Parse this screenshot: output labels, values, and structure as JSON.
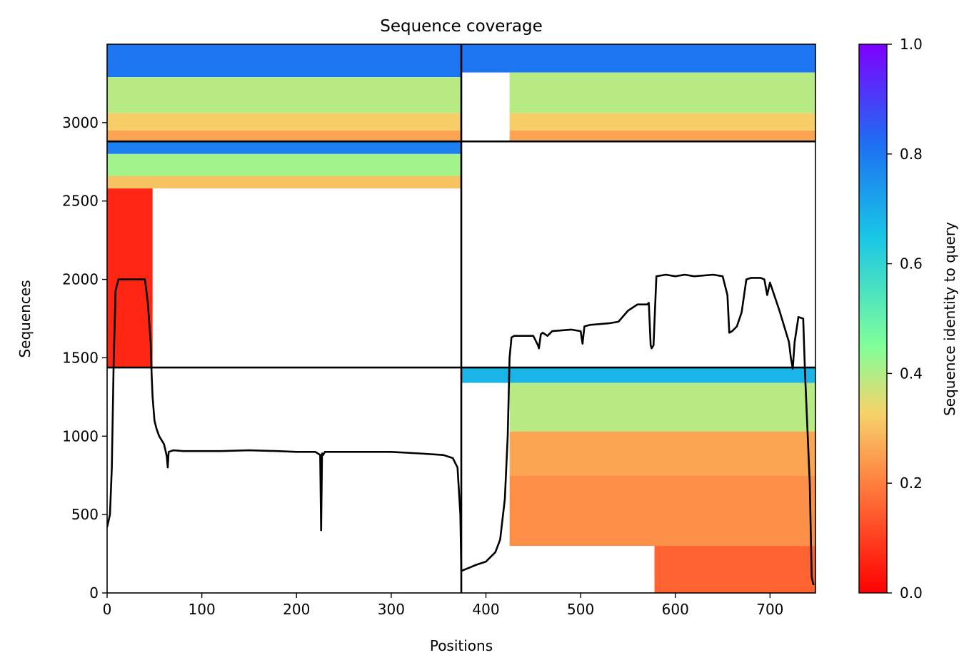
{
  "chart_data": {
    "type": "heatmap",
    "title": "Sequence coverage",
    "xlabel": "Positions",
    "ylabel": "Sequences",
    "xlim": [
      0,
      748
    ],
    "ylim": [
      0,
      3500
    ],
    "xticks": [
      0,
      100,
      200,
      300,
      400,
      500,
      600,
      700
    ],
    "yticks": [
      0,
      500,
      1000,
      1500,
      2000,
      2500,
      3000
    ],
    "grid": false,
    "separators": {
      "vertical_x": 374,
      "horizontal_y": [
        1438,
        2880
      ]
    },
    "colorbar": {
      "label": "Sequence identity to query",
      "range": [
        0.0,
        1.0
      ],
      "ticks": [
        "0.0",
        "0.2",
        "0.4",
        "0.6",
        "0.8",
        "1.0"
      ],
      "colormap": "rainbow_r",
      "colors": [
        "#ff0000",
        "#ff7f3f",
        "#f5d46b",
        "#80ff99",
        "#18c6e6",
        "#1e6ef2",
        "#7f00ff"
      ]
    },
    "blocks": [
      {
        "x": [
          0,
          374
        ],
        "y": [
          2880,
          3500
        ],
        "rows": [
          {
            "y": [
              3290,
              3500
            ],
            "x": [
              0,
              374
            ],
            "identity": 0.82
          },
          {
            "y": [
              3060,
              3290
            ],
            "x": [
              0,
              374
            ],
            "identity": 0.42
          },
          {
            "y": [
              2950,
              3060
            ],
            "x": [
              0,
              374
            ],
            "identity": 0.32
          },
          {
            "y": [
              2880,
              2950
            ],
            "x": [
              0,
              374
            ],
            "identity": 0.24
          }
        ]
      },
      {
        "x": [
          374,
          748
        ],
        "y": [
          2880,
          3500
        ],
        "rows": [
          {
            "y": [
              3320,
              3500
            ],
            "x": [
              374,
              748
            ],
            "identity": 0.82
          },
          {
            "y": [
              3060,
              3320
            ],
            "x": [
              425,
              748
            ],
            "identity": 0.42
          },
          {
            "y": [
              2950,
              3060
            ],
            "x": [
              425,
              748
            ],
            "identity": 0.32
          },
          {
            "y": [
              2880,
              2950
            ],
            "x": [
              425,
              748
            ],
            "identity": 0.24
          }
        ]
      },
      {
        "x": [
          0,
          374
        ],
        "y": [
          1438,
          2880
        ],
        "rows": [
          {
            "y": [
              2800,
              2880
            ],
            "x": [
              0,
              374
            ],
            "identity": 0.8
          },
          {
            "y": [
              2660,
              2800
            ],
            "x": [
              0,
              374
            ],
            "identity": 0.45
          },
          {
            "y": [
              2580,
              2660
            ],
            "x": [
              0,
              374
            ],
            "identity": 0.3
          },
          {
            "y": [
              1438,
              2580
            ],
            "x": [
              0,
              48
            ],
            "identity": 0.05
          }
        ]
      },
      {
        "x": [
          374,
          748
        ],
        "y": [
          0,
          1438
        ],
        "rows": [
          {
            "y": [
              1340,
              1438
            ],
            "x": [
              374,
              748
            ],
            "identity": 0.7
          },
          {
            "y": [
              1030,
              1340
            ],
            "x": [
              425,
              748
            ],
            "identity": 0.42
          },
          {
            "y": [
              750,
              1030
            ],
            "x": [
              425,
              748
            ],
            "identity": 0.24
          },
          {
            "y": [
              300,
              750
            ],
            "x": [
              425,
              748
            ],
            "identity": 0.2
          },
          {
            "y": [
              0,
              300
            ],
            "x": [
              578,
              748
            ],
            "identity": 0.13
          }
        ]
      }
    ],
    "coverage_line": {
      "x": [
        0,
        3,
        5,
        7,
        9,
        12,
        20,
        30,
        40,
        43,
        46,
        47,
        48,
        50,
        52,
        55,
        60,
        62,
        63,
        64,
        65,
        70,
        80,
        100,
        120,
        150,
        180,
        200,
        220,
        225,
        226,
        227,
        228,
        230,
        240,
        280,
        300,
        330,
        355,
        365,
        370,
        373,
        374,
        380,
        390,
        400,
        410,
        415,
        420,
        423,
        425,
        427,
        430,
        440,
        450,
        455,
        456,
        458,
        460,
        465,
        470,
        490,
        500,
        502,
        504,
        510,
        530,
        540,
        550,
        560,
        570,
        572,
        574,
        575,
        577,
        580,
        590,
        600,
        610,
        620,
        640,
        650,
        655,
        657,
        660,
        665,
        670,
        675,
        680,
        690,
        694,
        697,
        700,
        710,
        720,
        722,
        724,
        726,
        730,
        735,
        737,
        742,
        744,
        746
      ],
      "y": [
        420,
        500,
        800,
        1500,
        1930,
        2000,
        2000,
        2000,
        2000,
        1850,
        1600,
        1400,
        1250,
        1100,
        1050,
        1000,
        950,
        900,
        870,
        800,
        900,
        910,
        905,
        905,
        905,
        910,
        905,
        900,
        900,
        880,
        400,
        890,
        880,
        900,
        900,
        900,
        900,
        890,
        880,
        860,
        800,
        500,
        140,
        155,
        180,
        200,
        260,
        340,
        600,
        1000,
        1500,
        1630,
        1640,
        1640,
        1640,
        1580,
        1560,
        1650,
        1660,
        1640,
        1670,
        1680,
        1670,
        1590,
        1700,
        1710,
        1720,
        1730,
        1800,
        1840,
        1840,
        1850,
        1580,
        1560,
        1580,
        2020,
        2030,
        2020,
        2030,
        2020,
        2030,
        2020,
        1900,
        1660,
        1670,
        1700,
        1790,
        2000,
        2010,
        2010,
        2000,
        1900,
        1980,
        1800,
        1600,
        1500,
        1430,
        1600,
        1760,
        1750,
        1400,
        700,
        100,
        50
      ]
    }
  }
}
